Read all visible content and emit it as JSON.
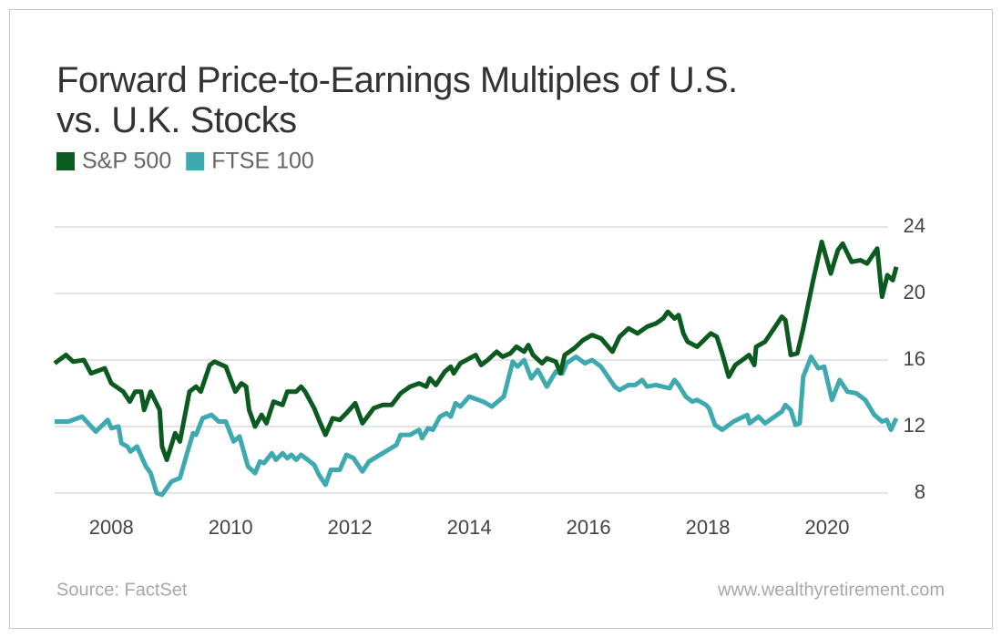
{
  "chart_data": {
    "type": "line",
    "title": "Forward Price-to-Earnings Multiples of U.S. vs. U.K. Stocks",
    "source": "Source: FactSet",
    "website": "www.wealthyretirement.com",
    "xlim": [
      2007.05,
      2021.16
    ],
    "xticks": [
      2008,
      2010,
      2012,
      2014,
      2016,
      2018,
      2020
    ],
    "ylim": [
      8,
      24
    ],
    "yticks": [
      8,
      12,
      16,
      20,
      24
    ],
    "grid": true,
    "legend": "top-left",
    "series": [
      {
        "name": "S&P 500",
        "color": "#0b5a1f",
        "x": [
          2007.05,
          2007.24,
          2007.36,
          2007.54,
          2007.66,
          2007.89,
          2008.0,
          2008.2,
          2008.31,
          2008.4,
          2008.5,
          2008.55,
          2008.66,
          2008.81,
          2008.85,
          2008.93,
          2009.07,
          2009.15,
          2009.31,
          2009.42,
          2009.5,
          2009.65,
          2009.73,
          2009.92,
          2010.08,
          2010.18,
          2010.26,
          2010.31,
          2010.41,
          2010.52,
          2010.6,
          2010.72,
          2010.87,
          2010.95,
          2011.1,
          2011.18,
          2011.25,
          2011.4,
          2011.48,
          2011.59,
          2011.71,
          2011.83,
          2011.94,
          2012.09,
          2012.21,
          2012.4,
          2012.55,
          2012.7,
          2012.85,
          2013.01,
          2013.16,
          2013.28,
          2013.34,
          2013.44,
          2013.59,
          2013.69,
          2013.74,
          2013.85,
          2014.11,
          2014.2,
          2014.31,
          2014.46,
          2014.56,
          2014.69,
          2014.79,
          2014.92,
          2014.99,
          2015.07,
          2015.22,
          2015.3,
          2015.45,
          2015.53,
          2015.6,
          2015.76,
          2015.91,
          2016.06,
          2016.21,
          2016.4,
          2016.52,
          2016.67,
          2016.82,
          2016.98,
          2017.13,
          2017.25,
          2017.33,
          2017.44,
          2017.51,
          2017.59,
          2017.66,
          2017.82,
          2018.05,
          2018.15,
          2018.24,
          2018.35,
          2018.46,
          2018.58,
          2018.69,
          2018.78,
          2018.81,
          2018.96,
          2019.11,
          2019.24,
          2019.3,
          2019.39,
          2019.5,
          2019.6,
          2019.76,
          2019.91,
          2020.06,
          2020.18,
          2020.26,
          2020.41,
          2020.56,
          2020.67,
          2020.84,
          2020.92,
          2021.01,
          2021.1,
          2021.16
        ],
        "values": [
          15.8,
          16.3,
          15.9,
          16.0,
          15.2,
          15.5,
          14.6,
          14.1,
          13.5,
          14.1,
          14.1,
          13.0,
          14.1,
          13.0,
          10.8,
          10.0,
          11.6,
          11.1,
          14.1,
          14.4,
          14.1,
          15.7,
          15.9,
          15.6,
          14.1,
          14.6,
          14.4,
          13.0,
          12.0,
          12.7,
          12.2,
          13.5,
          13.3,
          14.1,
          14.1,
          14.4,
          14.1,
          13.1,
          12.4,
          11.5,
          12.5,
          12.4,
          12.8,
          13.4,
          12.2,
          13.1,
          13.3,
          13.3,
          14.0,
          14.4,
          14.6,
          14.4,
          14.9,
          14.5,
          15.3,
          15.6,
          15.2,
          15.8,
          16.3,
          15.7,
          16.0,
          16.5,
          16.2,
          16.4,
          16.8,
          16.5,
          16.9,
          16.3,
          15.8,
          16.1,
          15.9,
          15.2,
          16.3,
          16.7,
          17.2,
          17.5,
          17.3,
          16.5,
          17.4,
          17.9,
          17.6,
          18.0,
          18.2,
          18.5,
          18.9,
          18.5,
          18.7,
          17.6,
          17.1,
          16.8,
          17.6,
          17.4,
          16.4,
          15.0,
          15.7,
          16.0,
          16.3,
          15.7,
          16.8,
          17.1,
          17.9,
          18.6,
          18.4,
          16.3,
          16.4,
          17.9,
          20.7,
          23.1,
          21.2,
          22.6,
          23.0,
          21.9,
          22.0,
          21.8,
          22.7,
          19.8,
          21.1,
          20.8,
          21.6
        ]
      },
      {
        "name": "FTSE 100",
        "color": "#3fa9b0",
        "x": [
          2007.05,
          2007.28,
          2007.51,
          2007.74,
          2007.94,
          2008.0,
          2008.12,
          2008.17,
          2008.27,
          2008.32,
          2008.43,
          2008.58,
          2008.66,
          2008.76,
          2008.85,
          2009.01,
          2009.15,
          2009.27,
          2009.37,
          2009.42,
          2009.53,
          2009.68,
          2009.8,
          2009.92,
          2010.05,
          2010.15,
          2010.29,
          2010.41,
          2010.49,
          2010.56,
          2010.69,
          2010.76,
          2010.87,
          2010.95,
          2011.02,
          2011.1,
          2011.18,
          2011.4,
          2011.48,
          2011.59,
          2011.68,
          2011.83,
          2011.94,
          2012.06,
          2012.21,
          2012.32,
          2012.55,
          2012.78,
          2012.85,
          2013.01,
          2013.16,
          2013.21,
          2013.31,
          2013.39,
          2013.51,
          2013.62,
          2013.69,
          2013.77,
          2013.85,
          2014.0,
          2014.23,
          2014.38,
          2014.58,
          2014.73,
          2014.81,
          2014.92,
          2015.04,
          2015.15,
          2015.3,
          2015.45,
          2015.56,
          2015.63,
          2015.79,
          2015.94,
          2016.06,
          2016.21,
          2016.44,
          2016.52,
          2016.67,
          2016.78,
          2016.9,
          2016.98,
          2017.13,
          2017.36,
          2017.44,
          2017.51,
          2017.63,
          2017.74,
          2017.82,
          2017.97,
          2018.02,
          2018.12,
          2018.24,
          2018.43,
          2018.66,
          2018.7,
          2018.85,
          2018.96,
          2019.24,
          2019.3,
          2019.39,
          2019.47,
          2019.54,
          2019.6,
          2019.73,
          2019.85,
          2019.95,
          2020.08,
          2020.21,
          2020.34,
          2020.49,
          2020.64,
          2020.79,
          2020.92,
          2021.0,
          2021.07,
          2021.16
        ],
        "values": [
          12.3,
          12.3,
          12.6,
          11.7,
          12.4,
          11.9,
          12.0,
          11.0,
          10.8,
          10.5,
          10.8,
          9.6,
          9.2,
          8.0,
          7.9,
          8.7,
          8.9,
          10.4,
          11.6,
          11.5,
          12.5,
          12.7,
          12.3,
          12.3,
          11.1,
          11.4,
          9.6,
          9.2,
          9.9,
          9.8,
          10.4,
          10.0,
          10.4,
          10.1,
          10.3,
          10.0,
          10.3,
          9.7,
          9.1,
          8.5,
          9.4,
          9.4,
          10.3,
          10.1,
          9.3,
          9.9,
          10.4,
          10.9,
          11.5,
          11.5,
          11.8,
          11.3,
          11.9,
          11.8,
          12.6,
          12.8,
          12.6,
          13.4,
          13.2,
          13.8,
          13.5,
          13.2,
          13.8,
          15.9,
          15.6,
          16.0,
          14.9,
          15.4,
          14.4,
          15.3,
          15.2,
          15.8,
          16.2,
          15.8,
          16.0,
          15.6,
          14.4,
          14.2,
          14.5,
          14.5,
          14.8,
          14.4,
          14.5,
          14.3,
          14.8,
          14.5,
          13.8,
          13.5,
          13.6,
          13.3,
          13.1,
          12.1,
          11.8,
          12.3,
          12.7,
          12.2,
          12.6,
          12.2,
          12.9,
          13.3,
          13.0,
          12.1,
          12.2,
          15.0,
          16.2,
          15.5,
          15.6,
          13.6,
          14.8,
          14.1,
          14.0,
          13.6,
          12.7,
          12.3,
          12.4,
          11.8,
          12.5
        ]
      }
    ]
  }
}
